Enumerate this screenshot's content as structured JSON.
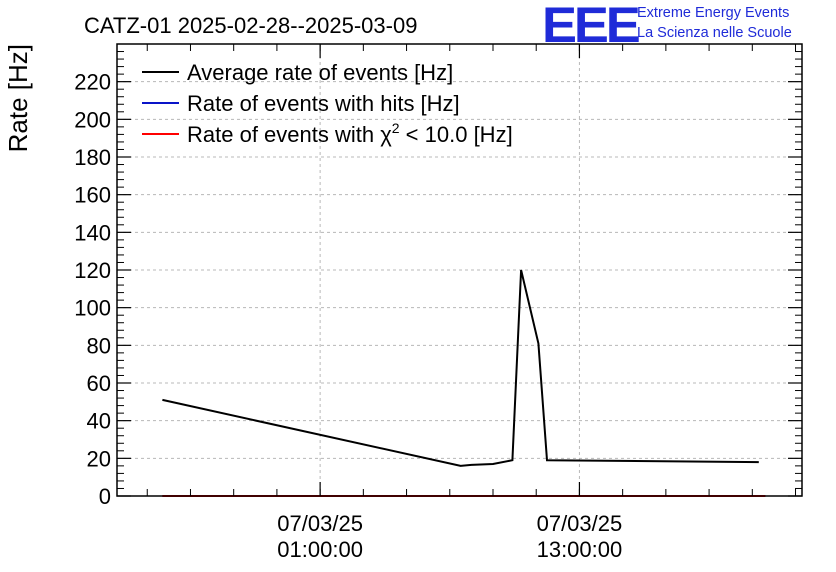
{
  "chart_data": {
    "type": "line",
    "title": "CATZ-01 2025-02-28--2025-03-09",
    "ylabel": "Rate [Hz]",
    "xlabel": "",
    "ylim": [
      0,
      240
    ],
    "y_ticks": [
      0,
      20,
      40,
      60,
      80,
      100,
      120,
      140,
      160,
      180,
      200,
      220
    ],
    "x_ticks": [
      {
        "x": 1.0,
        "date": "07/03/25",
        "time": "01:00:00"
      },
      {
        "x": 13.0,
        "date": "07/03/25",
        "time": "13:00:00"
      }
    ],
    "xlim": [
      -8.4,
      23.3
    ],
    "x_unit": "hours since 07/03/25 00:00",
    "grid": true,
    "legend_position": "top-left",
    "series": [
      {
        "name": "Average rate of events [Hz]",
        "color": "#000000",
        "x": [
          -6.3,
          7.5,
          8.0,
          9.0,
          9.9,
          10.3,
          11.1,
          11.5,
          21.3
        ],
        "y": [
          51,
          16,
          16.5,
          17,
          19,
          120,
          81,
          19,
          18
        ]
      },
      {
        "name": "Rate of events with hits [Hz]",
        "color": "#0a14c8",
        "x": [
          -6.3,
          21.6
        ],
        "y": [
          0,
          0
        ]
      },
      {
        "name": "Rate of events with χ² < 10.0 [Hz]",
        "color": "#ff0000",
        "x": [
          -6.3,
          21.6
        ],
        "y": [
          0,
          0
        ]
      }
    ]
  },
  "logo": {
    "mark": "EEE",
    "line1": "Extreme Energy Events",
    "line2": "La Scienza nelle Scuole"
  }
}
